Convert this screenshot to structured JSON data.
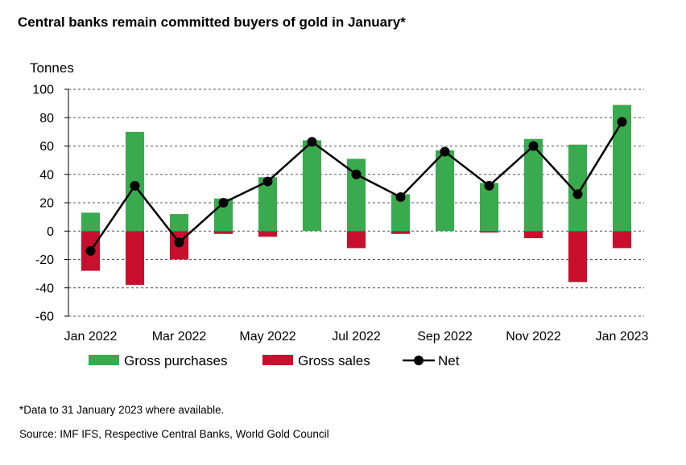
{
  "chart_data": {
    "type": "bar",
    "title": "Central banks remain committed buyers of gold in January*",
    "ylabel": "Tonnes",
    "ylim": [
      -60,
      100
    ],
    "yticks": [
      100,
      80,
      60,
      40,
      20,
      0,
      -20,
      -40,
      -60
    ],
    "categories": [
      "Jan 2022",
      "Feb 2022",
      "Mar 2022",
      "Apr 2022",
      "May 2022",
      "Jun 2022",
      "Jul 2022",
      "Aug 2022",
      "Sep 2022",
      "Oct 2022",
      "Nov 2022",
      "Dec 2022",
      "Jan 2023"
    ],
    "xtick_labels": [
      "Jan 2022",
      "Mar 2022",
      "May 2022",
      "Jul 2022",
      "Sep 2022",
      "Nov 2022",
      "Jan 2023"
    ],
    "grid": "horizontal dashed",
    "legend_position": "bottom",
    "series": [
      {
        "name": "Gross purchases",
        "kind": "bar",
        "color": "#3aaa4f",
        "values": [
          13,
          70,
          12,
          23,
          38,
          64,
          51,
          26,
          57,
          34,
          65,
          61,
          89
        ]
      },
      {
        "name": "Gross sales",
        "kind": "bar",
        "color": "#c8102e",
        "values": [
          -28,
          -38,
          -20,
          -2,
          -4,
          0,
          -12,
          -2,
          0,
          -1,
          -5,
          -36,
          -12
        ]
      },
      {
        "name": "Net",
        "kind": "line",
        "color": "#000000",
        "values": [
          -14,
          32,
          -8,
          20,
          35,
          63,
          40,
          24,
          56,
          32,
          60,
          26,
          77
        ]
      }
    ]
  },
  "notes": {
    "footnote": "*Data to 31 January 2023 where available.",
    "source": "Source: IMF IFS, Respective Central Banks, World Gold Council"
  }
}
